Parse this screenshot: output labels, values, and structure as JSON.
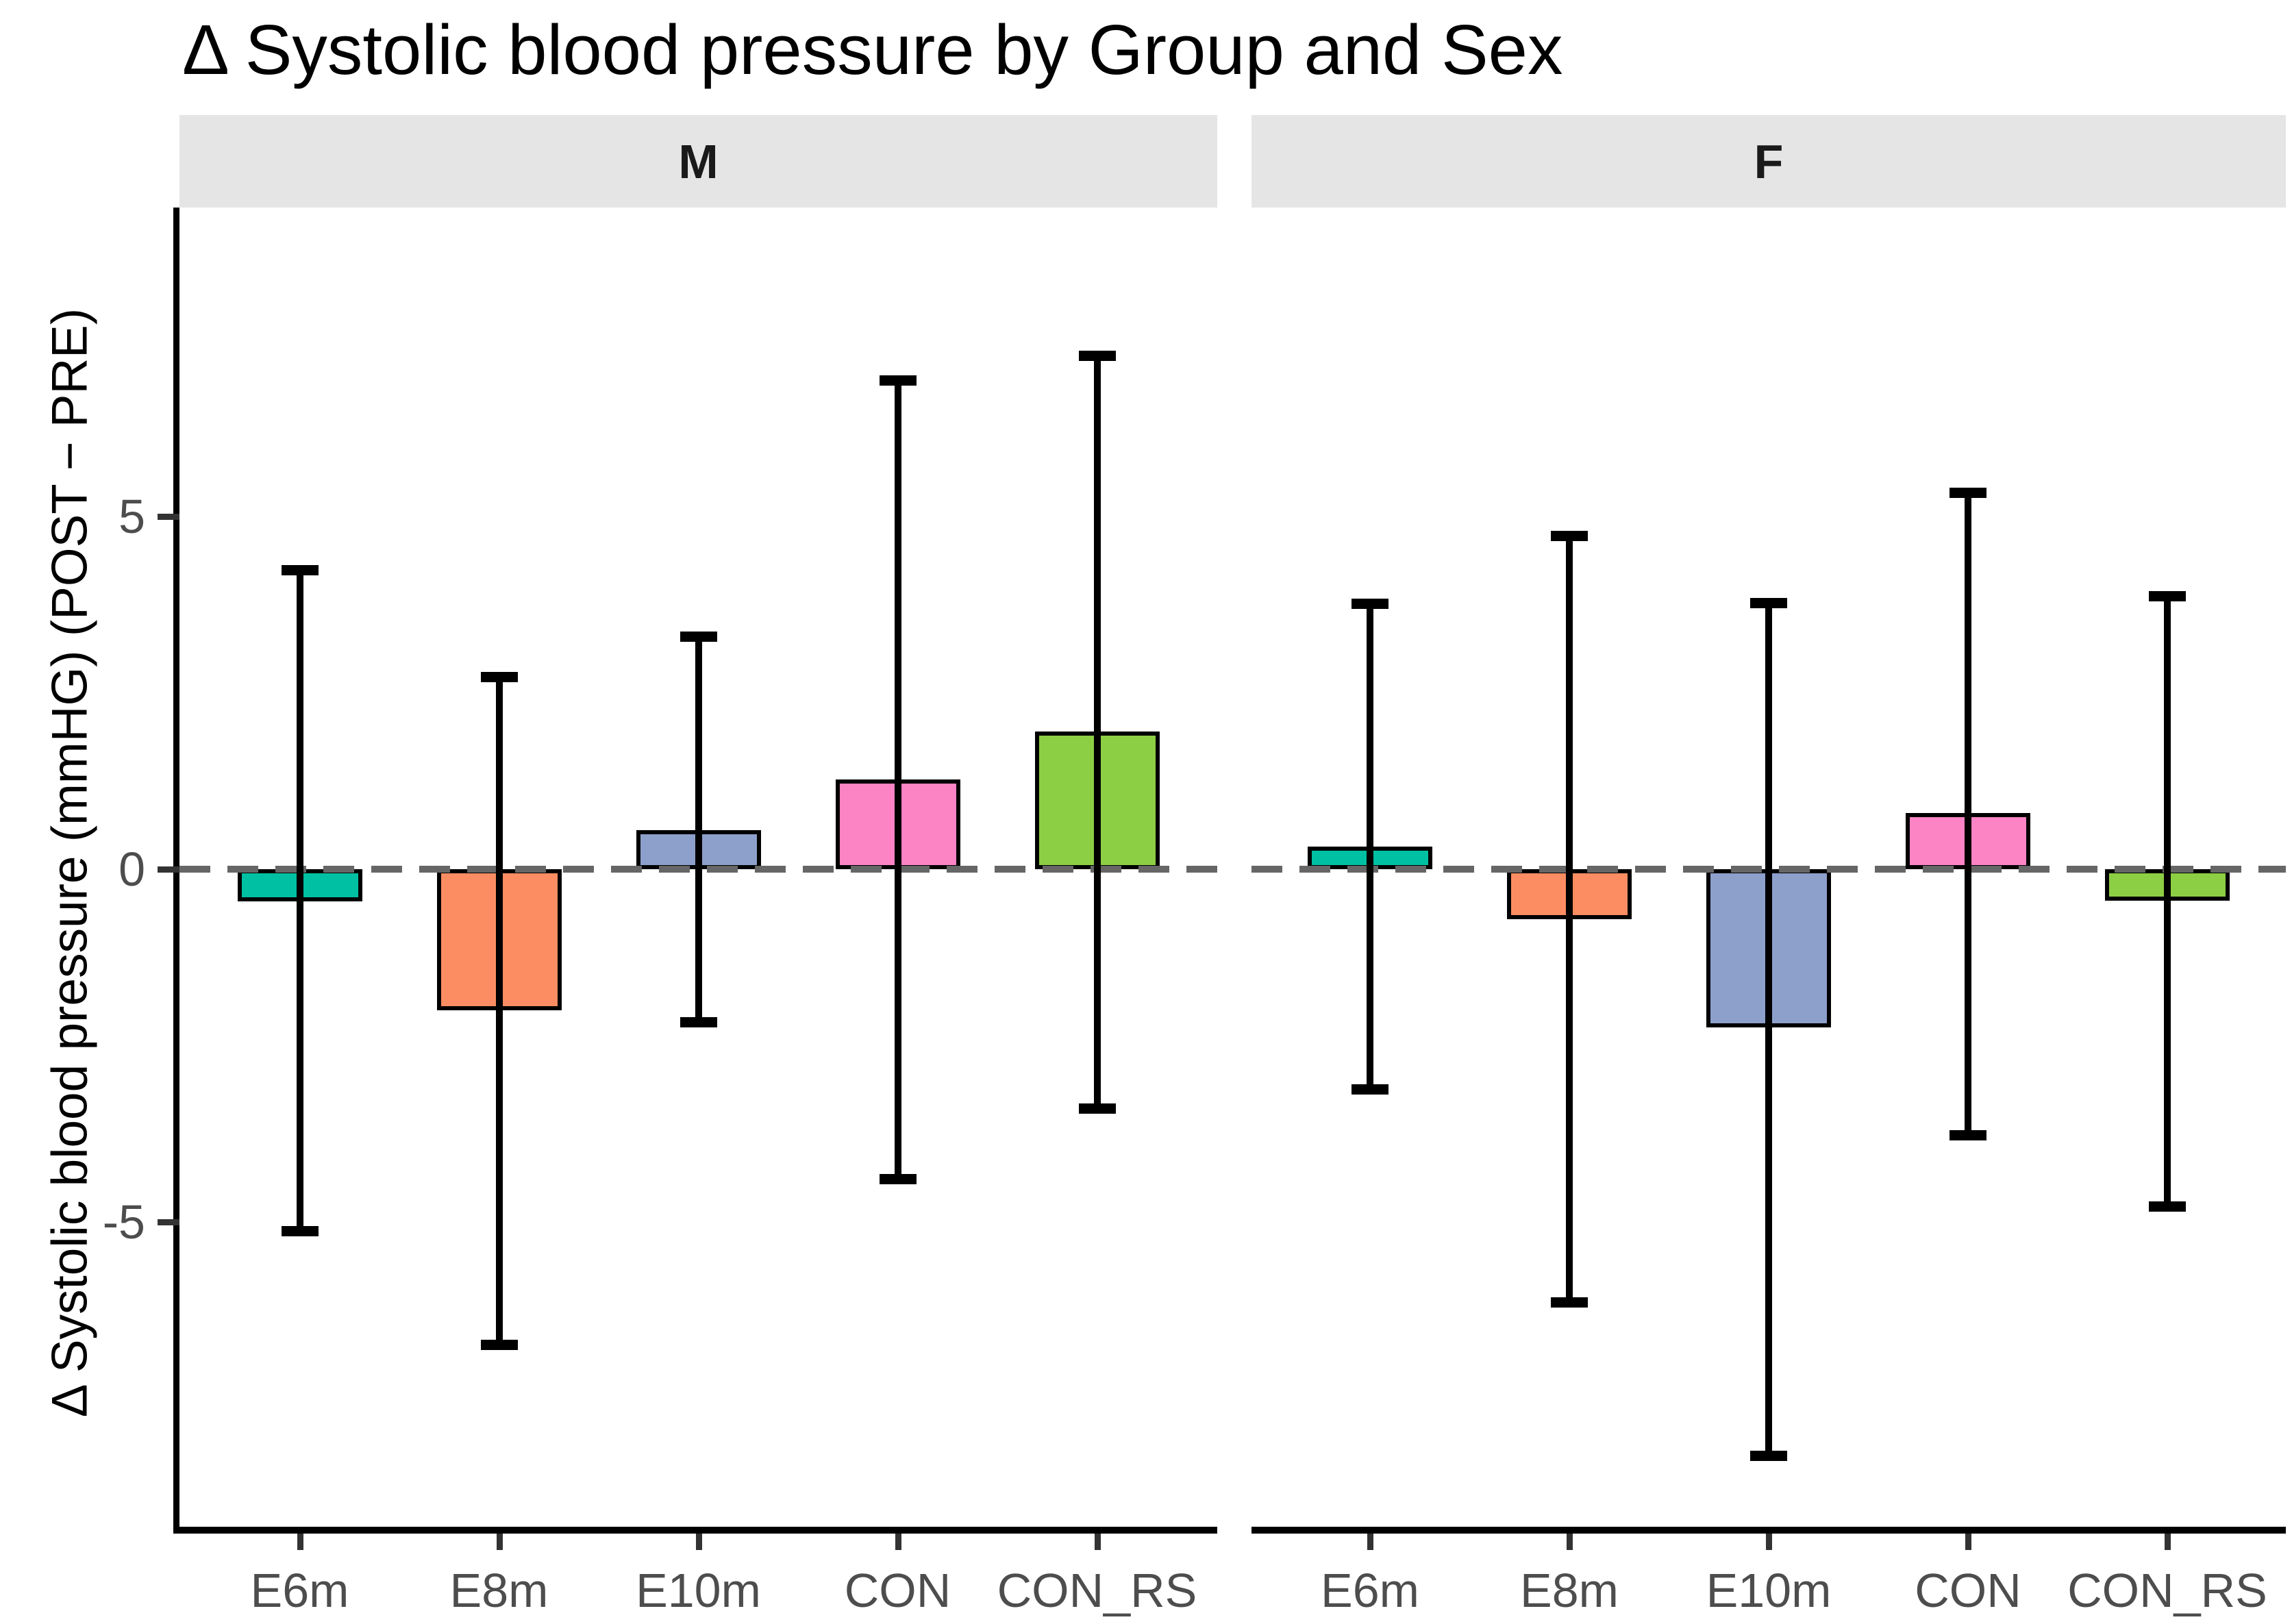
{
  "title": "Δ Systolic blood pressure by Group and Sex",
  "y_axis": {
    "label": "Δ Systolic blood pressure (mmHG) (POST − PRE)",
    "ticks": [
      "5",
      "0",
      "-5"
    ],
    "tick_values": [
      5,
      0,
      -5
    ]
  },
  "palette": {
    "E6m": "#00C0A3",
    "E8m": "#FC8D62",
    "E10m": "#8DA0CB",
    "CON": "#FC84C4",
    "CON_RS": "#8CCE44"
  },
  "strip_background": "#E5E5E5",
  "tick_label_color": "#4D4D4D",
  "chart_data": {
    "type": "bar",
    "title": "Δ Systolic blood pressure by Group and Sex",
    "xlabel": "",
    "ylabel": "Δ Systolic blood pressure (mmHG) (POST − PRE)",
    "categories": [
      "E6m",
      "E8m",
      "E10m",
      "CON",
      "CON_RS"
    ],
    "facet_labels": [
      "M",
      "F"
    ],
    "ylim": [
      -9.32,
      9.38
    ],
    "yticks": [
      5,
      0,
      -5
    ],
    "grid": false,
    "legend": "none",
    "zero_reference_line": "dashed-gray",
    "error_bars": true,
    "facets": [
      {
        "label": "M",
        "bars": [
          {
            "category": "E6m",
            "mean": -0.46,
            "lower": -5.18,
            "upper": 4.29,
            "color": "#00C0A3"
          },
          {
            "category": "E8m",
            "mean": -2.0,
            "lower": -6.8,
            "upper": 2.78,
            "color": "#FC8D62"
          },
          {
            "category": "E10m",
            "mean": 0.55,
            "lower": -2.22,
            "upper": 3.35,
            "color": "#8DA0CB"
          },
          {
            "category": "CON",
            "mean": 1.27,
            "lower": -4.45,
            "upper": 6.98,
            "color": "#FC84C4"
          },
          {
            "category": "CON_RS",
            "mean": 1.95,
            "lower": -3.45,
            "upper": 7.33,
            "color": "#8CCE44"
          }
        ]
      },
      {
        "label": "F",
        "bars": [
          {
            "category": "E6m",
            "mean": 0.32,
            "lower": -3.17,
            "upper": 3.82,
            "color": "#00C0A3"
          },
          {
            "category": "E8m",
            "mean": -0.71,
            "lower": -6.19,
            "upper": 4.78,
            "color": "#FC8D62"
          },
          {
            "category": "E10m",
            "mean": -2.24,
            "lower": -8.37,
            "upper": 3.83,
            "color": "#8DA0CB"
          },
          {
            "category": "CON",
            "mean": 0.8,
            "lower": -3.82,
            "upper": 5.39,
            "color": "#FC84C4"
          },
          {
            "category": "CON_RS",
            "mean": -0.45,
            "lower": -4.83,
            "upper": 3.92,
            "color": "#8CCE44"
          }
        ]
      }
    ]
  }
}
